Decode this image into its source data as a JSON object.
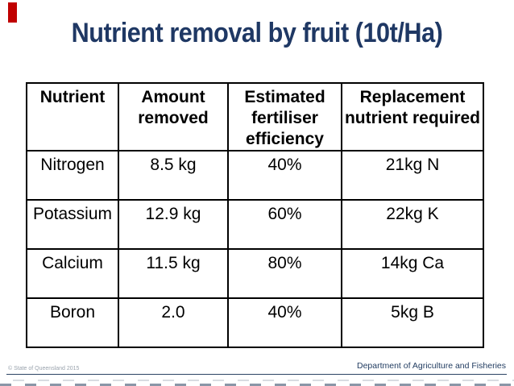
{
  "slide": {
    "title": "Nutrient removal by fruit (10t/Ha)"
  },
  "table": {
    "columns": [
      "Nutrient",
      "Amount removed",
      "Estimated fertiliser efficiency",
      "Replacement nutrient required"
    ],
    "rows": [
      [
        "Nitrogen",
        "8.5 kg",
        "40%",
        "21kg N"
      ],
      [
        "Potassium",
        "12.9 kg",
        "60%",
        "22kg K"
      ],
      [
        "Calcium",
        "11.5 kg",
        "80%",
        "14kg Ca"
      ],
      [
        "Boron",
        "2.0",
        "40%",
        "5kg B"
      ]
    ]
  },
  "footer": {
    "copyright": "© State of Queensland 2015",
    "department": "Department of Agriculture and Fisheries"
  },
  "colors": {
    "title_navy": "#1F3864",
    "accent_red": "#C00000",
    "footer_navy": "#1F3A5F",
    "table_border": "#000000"
  },
  "chart_data": {
    "type": "table",
    "title": "Nutrient removal by fruit (10t/Ha)",
    "columns": [
      "Nutrient",
      "Amount removed",
      "Estimated fertiliser efficiency",
      "Replacement nutrient required"
    ],
    "rows": [
      [
        "Nitrogen",
        "8.5 kg",
        "40%",
        "21kg N"
      ],
      [
        "Potassium",
        "12.9 kg",
        "60%",
        "22kg K"
      ],
      [
        "Calcium",
        "11.5 kg",
        "80%",
        "14kg Ca"
      ],
      [
        "Boron",
        "2.0",
        "40%",
        "5kg B"
      ]
    ]
  }
}
